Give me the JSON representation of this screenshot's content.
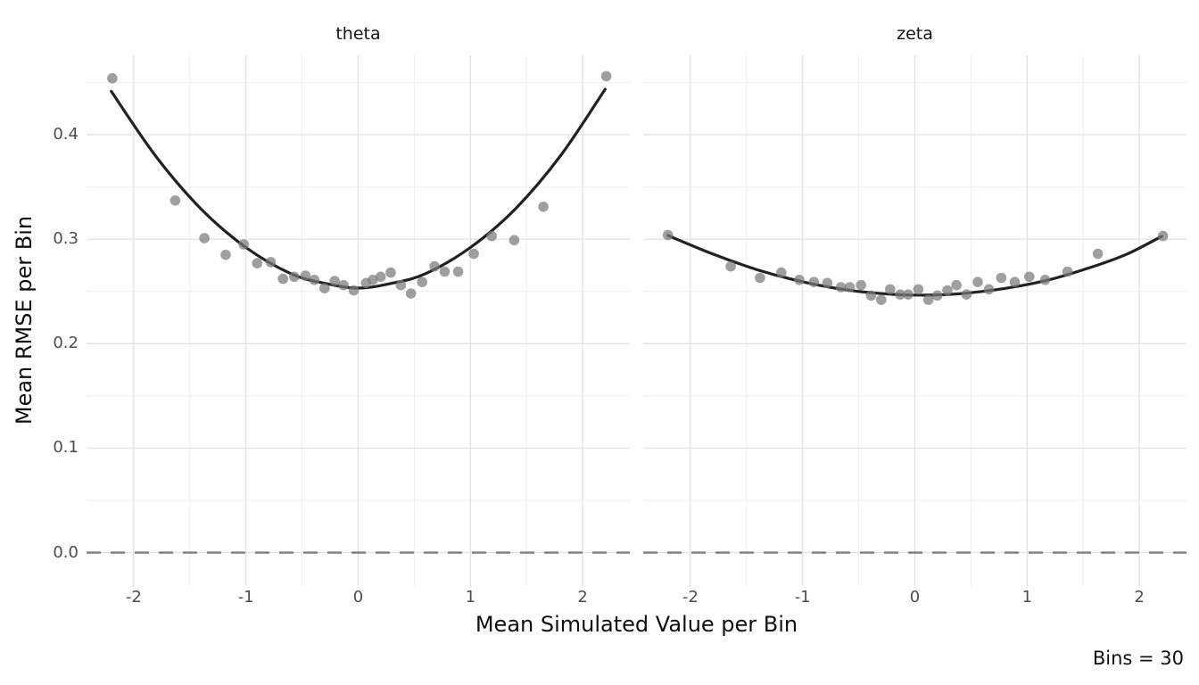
{
  "caption": "Bins = 30",
  "axes": {
    "x_label": "Mean Simulated Value per Bin",
    "y_label": "Mean RMSE per Bin",
    "x_ticks": [
      {
        "label": "-2",
        "value": -2
      },
      {
        "label": "-1",
        "value": -1
      },
      {
        "label": "0",
        "value": 0
      },
      {
        "label": "1",
        "value": 1
      },
      {
        "label": "2",
        "value": 2
      }
    ],
    "x_minor": [
      -1.5,
      -0.5,
      0.5,
      1.5
    ],
    "y_ticks": [
      {
        "label": "0.0",
        "value": 0.0
      },
      {
        "label": "0.1",
        "value": 0.1
      },
      {
        "label": "0.2",
        "value": 0.2
      },
      {
        "label": "0.3",
        "value": 0.3
      },
      {
        "label": "0.4",
        "value": 0.4
      }
    ],
    "y_minor": [
      0.05,
      0.15,
      0.25,
      0.35,
      0.45
    ]
  },
  "style": {
    "grid_major_color": "#e3e3e3",
    "grid_minor_color": "#efefef",
    "point_color": "#7a7a7a",
    "point_opacity": 0.72,
    "point_radius": 5.8,
    "smooth_color": "#212121",
    "smooth_width": 3.2,
    "reference_color": "#7d7d7d",
    "reference_width": 2.4,
    "reference_dash": "16 11",
    "background": "#ffffff"
  },
  "chart_data": [
    {
      "type": "scatter",
      "facet": "theta",
      "xlim": [
        -2.42,
        2.42
      ],
      "ylim": [
        -0.032,
        0.476
      ],
      "grid": true,
      "reference_line_y": 0.0,
      "points": [
        [
          -2.19,
          0.454
        ],
        [
          -1.63,
          0.337
        ],
        [
          -1.37,
          0.301
        ],
        [
          -1.18,
          0.285
        ],
        [
          -1.02,
          0.295
        ],
        [
          -0.9,
          0.277
        ],
        [
          -0.78,
          0.278
        ],
        [
          -0.67,
          0.262
        ],
        [
          -0.57,
          0.264
        ],
        [
          -0.47,
          0.265
        ],
        [
          -0.39,
          0.261
        ],
        [
          -0.3,
          0.253
        ],
        [
          -0.21,
          0.26
        ],
        [
          -0.13,
          0.256
        ],
        [
          -0.04,
          0.251
        ],
        [
          0.07,
          0.258
        ],
        [
          0.13,
          0.261
        ],
        [
          0.2,
          0.264
        ],
        [
          0.29,
          0.268
        ],
        [
          0.38,
          0.256
        ],
        [
          0.47,
          0.248
        ],
        [
          0.57,
          0.259
        ],
        [
          0.68,
          0.274
        ],
        [
          0.77,
          0.269
        ],
        [
          0.89,
          0.269
        ],
        [
          1.03,
          0.286
        ],
        [
          1.19,
          0.303
        ],
        [
          1.39,
          0.299
        ],
        [
          1.65,
          0.331
        ],
        [
          2.21,
          0.456
        ]
      ],
      "smooth_line": [
        [
          -2.2,
          0.4415
        ],
        [
          -1.8,
          0.379
        ],
        [
          -1.4,
          0.329
        ],
        [
          -1.0,
          0.292
        ],
        [
          -0.6,
          0.267
        ],
        [
          -0.3,
          0.2578
        ],
        [
          0.0,
          0.2532
        ],
        [
          0.3,
          0.2578
        ],
        [
          0.6,
          0.267
        ],
        [
          1.0,
          0.292
        ],
        [
          1.4,
          0.329
        ],
        [
          1.8,
          0.3795
        ],
        [
          2.2,
          0.4435
        ]
      ]
    },
    {
      "type": "scatter",
      "facet": "zeta",
      "xlim": [
        -2.42,
        2.42
      ],
      "ylim": [
        -0.032,
        0.476
      ],
      "grid": true,
      "reference_line_y": 0.0,
      "points": [
        [
          -2.2,
          0.304
        ],
        [
          -1.64,
          0.274
        ],
        [
          -1.38,
          0.263
        ],
        [
          -1.19,
          0.268
        ],
        [
          -1.03,
          0.261
        ],
        [
          -0.9,
          0.259
        ],
        [
          -0.78,
          0.258
        ],
        [
          -0.66,
          0.254
        ],
        [
          -0.58,
          0.254
        ],
        [
          -0.48,
          0.256
        ],
        [
          -0.39,
          0.246
        ],
        [
          -0.3,
          0.242
        ],
        [
          -0.22,
          0.252
        ],
        [
          -0.13,
          0.247
        ],
        [
          -0.06,
          0.247
        ],
        [
          0.03,
          0.252
        ],
        [
          0.12,
          0.242
        ],
        [
          0.2,
          0.246
        ],
        [
          0.29,
          0.251
        ],
        [
          0.37,
          0.256
        ],
        [
          0.46,
          0.247
        ],
        [
          0.56,
          0.259
        ],
        [
          0.66,
          0.252
        ],
        [
          0.77,
          0.263
        ],
        [
          0.89,
          0.259
        ],
        [
          1.02,
          0.264
        ],
        [
          1.16,
          0.261
        ],
        [
          1.36,
          0.269
        ],
        [
          1.63,
          0.286
        ],
        [
          2.21,
          0.303
        ]
      ],
      "smooth_line": [
        [
          -2.2,
          0.3035
        ],
        [
          -1.8,
          0.2858
        ],
        [
          -1.4,
          0.2706
        ],
        [
          -1.0,
          0.2592
        ],
        [
          -0.6,
          0.2513
        ],
        [
          -0.2,
          0.2472
        ],
        [
          0.1,
          0.2464
        ],
        [
          0.4,
          0.2478
        ],
        [
          0.8,
          0.2528
        ],
        [
          1.2,
          0.2612
        ],
        [
          1.6,
          0.2742
        ],
        [
          1.9,
          0.2862
        ],
        [
          2.2,
          0.3028
        ]
      ]
    }
  ]
}
